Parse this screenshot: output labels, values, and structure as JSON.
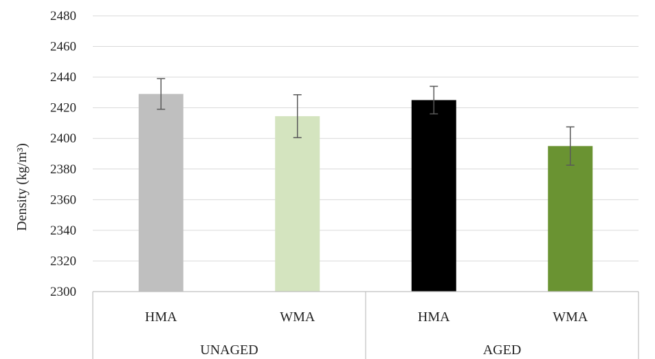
{
  "chart_data": {
    "type": "bar",
    "ylabel": "Density (kg/m³)",
    "ylim": [
      2300,
      2480
    ],
    "ytick_step": 20,
    "grid": true,
    "categories": [
      "HMA",
      "WMA",
      "HMA",
      "WMA"
    ],
    "groups": [
      {
        "label": "UNAGED",
        "span": [
          0,
          1
        ]
      },
      {
        "label": "AGED",
        "span": [
          2,
          3
        ]
      }
    ],
    "values": [
      2429,
      2414.5,
      2425,
      2395
    ],
    "error_low": [
      2419,
      2400.5,
      2416,
      2382.5
    ],
    "error_high": [
      2439,
      2428.5,
      2434,
      2407.5
    ],
    "colors": [
      "#bfbfbf",
      "#d4e4bf",
      "#000000",
      "#6a9332"
    ]
  }
}
